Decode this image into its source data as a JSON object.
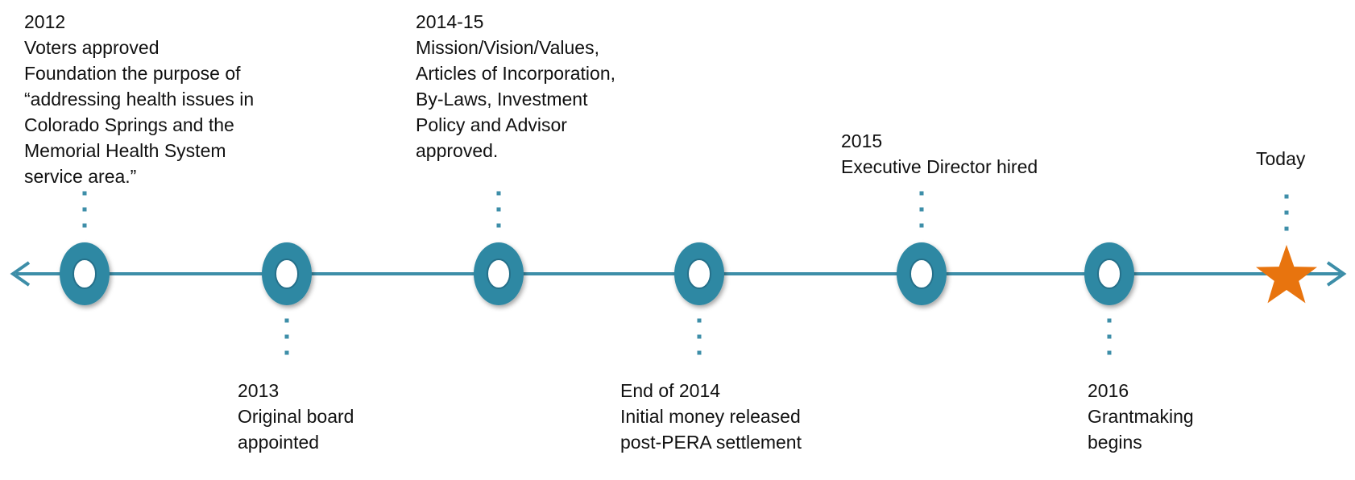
{
  "events": [
    {
      "date": "2012",
      "lines": [
        "Voters approved",
        "Foundation the purpose of",
        "“addressing health issues in",
        "Colorado Springs and the",
        "Memorial Health System",
        "service area.”"
      ]
    },
    {
      "date": "2013",
      "lines": [
        "Original board",
        "appointed"
      ]
    },
    {
      "date": "2014-15",
      "lines": [
        "Mission/Vision/Values,",
        "Articles of Incorporation,",
        "By-Laws, Investment",
        "Policy and Advisor",
        "approved."
      ]
    },
    {
      "date": "End of 2014",
      "lines": [
        "Initial money released",
        "post-PERA settlement"
      ]
    },
    {
      "date": "2015",
      "lines": [
        "Executive Director hired"
      ]
    },
    {
      "date": "2016",
      "lines": [
        "Grantmaking",
        "begins"
      ]
    },
    {
      "date": "Today",
      "lines": []
    }
  ]
}
